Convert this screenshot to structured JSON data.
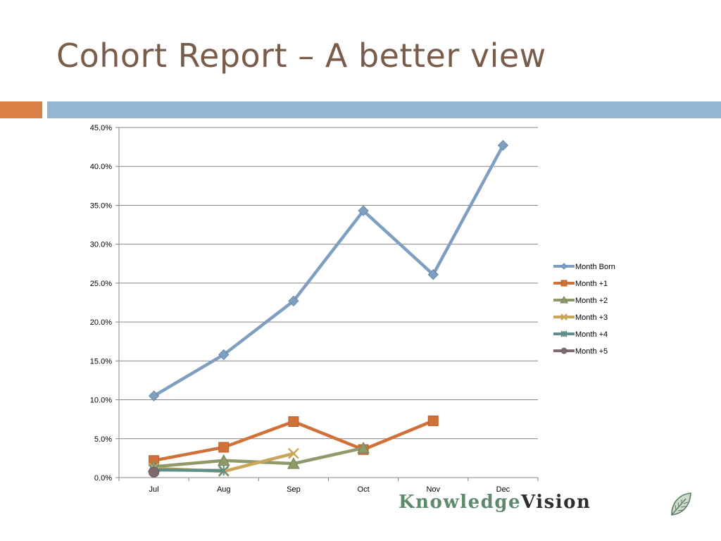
{
  "slide": {
    "title": "Cohort Report – A better view"
  },
  "logo": {
    "part1": "KnowledgeVision",
    "text_part1": "Knowledge",
    "text_part2": "Vision",
    "icon": "leaf-icon"
  },
  "colors": {
    "title": "#7a5c4b",
    "accent_orange": "#dd8047",
    "accent_blue": "#94b6d2",
    "grid": "#868686"
  },
  "chart_data": {
    "type": "line",
    "categories": [
      "Jul",
      "Aug",
      "Sep",
      "Oct",
      "Nov",
      "Dec"
    ],
    "ylim": [
      0,
      45
    ],
    "yticks": [
      "0.0%",
      "5.0%",
      "10.0%",
      "15.0%",
      "20.0%",
      "25.0%",
      "30.0%",
      "35.0%",
      "40.0%",
      "45.0%"
    ],
    "ytick_values": [
      0,
      5,
      10,
      15,
      20,
      25,
      30,
      35,
      40,
      45
    ],
    "grid": true,
    "legend_position": "right",
    "series": [
      {
        "name": "Month Born",
        "color": "#7f9fc0",
        "marker": "diamond",
        "values": [
          10.5,
          15.8,
          22.7,
          34.3,
          26.1,
          42.7
        ]
      },
      {
        "name": "Month +1",
        "color": "#d0713a",
        "marker": "square",
        "values": [
          2.2,
          3.9,
          7.2,
          3.6,
          7.3,
          null
        ]
      },
      {
        "name": "Month +2",
        "color": "#8f9a6a",
        "marker": "triangle",
        "values": [
          1.4,
          2.2,
          1.8,
          3.8,
          null,
          null
        ]
      },
      {
        "name": "Month +3",
        "color": "#c9a65a",
        "marker": "x",
        "values": [
          1.2,
          0.8,
          3.1,
          null,
          null,
          null
        ]
      },
      {
        "name": "Month +4",
        "color": "#5f8f86",
        "marker": "star",
        "values": [
          1.0,
          0.9,
          null,
          null,
          null,
          null
        ]
      },
      {
        "name": "Month +5",
        "color": "#7d6b6e",
        "marker": "circle",
        "values": [
          0.7,
          null,
          null,
          null,
          null,
          null
        ]
      }
    ]
  }
}
